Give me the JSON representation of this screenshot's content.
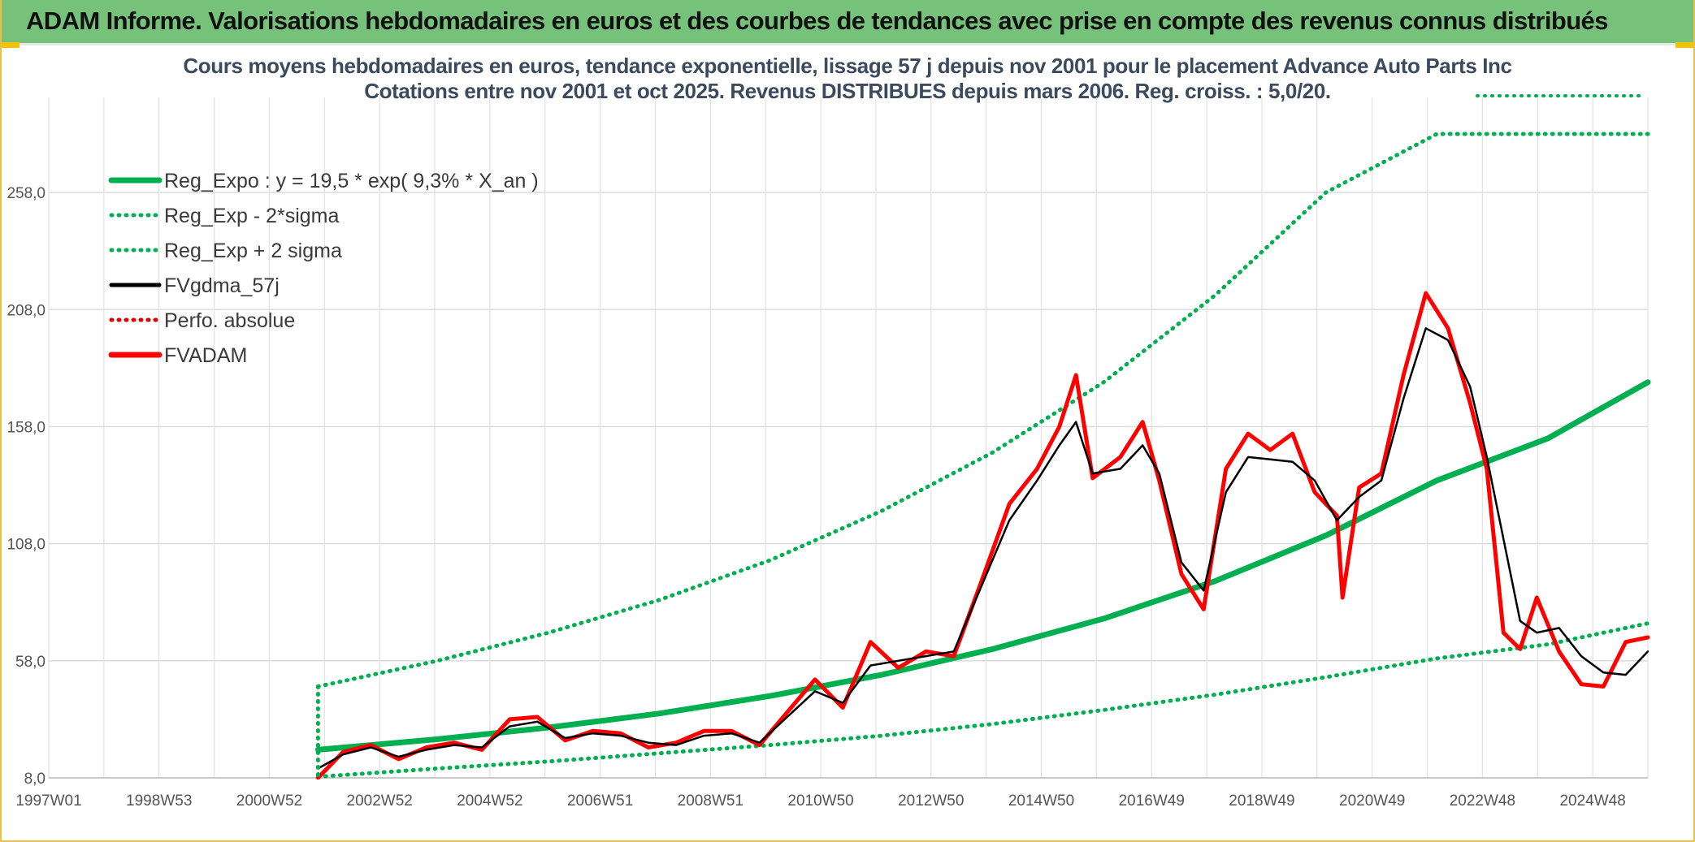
{
  "banner": {
    "title": "ADAM Informe. Valorisations hebdomadaires en euros et des courbes de tendances avec prise en compte des revenus connus distribués",
    "background": "#77c27b"
  },
  "chart_data": {
    "type": "line",
    "title": "Cours moyens hebdomadaires en euros, tendance exponentielle, lissage 57 j depuis nov 2001 pour le placement Advance Auto Parts Inc",
    "subtitle": "Cotations entre nov 2001 et oct 2025. Revenus DISTRIBUES depuis mars 2006. Reg. croiss. : 5,0/20.",
    "xlabel": "",
    "ylabel": "",
    "x_range": [
      1997.0,
      2025.8
    ],
    "ylim": [
      8.0,
      283.0
    ],
    "y_ticks": [
      "8,0",
      "58,0",
      "108,0",
      "158,0",
      "208,0",
      "258,0"
    ],
    "x_ticks": [
      "1997W01",
      "1998W53",
      "2000W52",
      "2002W52",
      "2004W52",
      "2006W51",
      "2008W51",
      "2010W50",
      "2012W50",
      "2014W50",
      "2016W49",
      "2018W49",
      "2020W49",
      "2022W48",
      "2024W48"
    ],
    "grid": true,
    "legend_position": "top-left",
    "legend": [
      {
        "label": "Reg_Expo : y = 19,5 * exp( 9,3% *  X_an )",
        "color": "#00b050",
        "style": "solid-thick"
      },
      {
        "label": "Reg_Exp - 2*sigma",
        "color": "#00b050",
        "style": "dotted"
      },
      {
        "label": "Reg_Exp + 2 sigma",
        "color": "#00b050",
        "style": "dotted"
      },
      {
        "label": "FVgdma_57j",
        "color": "#000000",
        "style": "solid"
      },
      {
        "label": "Perfo. absolue",
        "color": "#e00000",
        "style": "dotted"
      },
      {
        "label": "FVADAM",
        "color": "#ff0000",
        "style": "solid-thick"
      }
    ],
    "series": [
      {
        "name": "Reg_Expo : y = 19,5 * exp( 9,3% *  X_an )",
        "formula": "y = 19,5 * exp( 9,3% * X_an )",
        "x_start": 2001.85,
        "x_end": 2025.8,
        "x": [
          2001.85,
          2004.0,
          2006.0,
          2008.0,
          2010.0,
          2012.0,
          2014.0,
          2016.0,
          2018.0,
          2020.0,
          2022.0,
          2024.0,
          2025.8
        ],
        "values": [
          20.0,
          24.5,
          29.5,
          35.5,
          43.0,
          52.0,
          63.0,
          76.0,
          92.0,
          111.5,
          135.0,
          153.0,
          177.0
        ]
      },
      {
        "name": "Reg_Exp - 2*sigma",
        "x_start": 2001.85,
        "x_end": 2025.8,
        "x": [
          2001.85,
          2004.0,
          2006.0,
          2008.0,
          2010.0,
          2012.0,
          2014.0,
          2016.0,
          2018.0,
          2020.0,
          2022.0,
          2024.0,
          2025.8
        ],
        "values": [
          8.5,
          12.0,
          15.0,
          18.5,
          22.0,
          26.0,
          31.0,
          37.0,
          43.5,
          51.0,
          59.0,
          65.0,
          74.0
        ]
      },
      {
        "name": "Reg_Exp + 2 sigma",
        "x_start": 2001.85,
        "x_end": 2025.8,
        "x": [
          2001.85,
          2004.0,
          2006.0,
          2008.0,
          2010.0,
          2012.0,
          2014.0,
          2016.0,
          2018.0,
          2020.0,
          2022.0,
          2024.0,
          2025.8
        ],
        "values": [
          47.0,
          58.0,
          70.0,
          84.0,
          101.0,
          122.0,
          147.0,
          177.0,
          214.0,
          258.0,
          283.0,
          283.0,
          283.0
        ]
      },
      {
        "name": "FVgdma_57j",
        "x": [
          2001.85,
          2002.3,
          2002.8,
          2003.3,
          2003.8,
          2004.3,
          2004.8,
          2005.3,
          2005.8,
          2006.3,
          2006.8,
          2007.3,
          2007.8,
          2008.3,
          2008.8,
          2009.3,
          2009.8,
          2010.3,
          2010.8,
          2011.3,
          2011.8,
          2012.3,
          2012.8,
          2013.3,
          2013.8,
          2014.3,
          2014.8,
          2015.2,
          2015.5,
          2015.8,
          2016.3,
          2016.7,
          2017.0,
          2017.4,
          2017.8,
          2018.2,
          2018.6,
          2019.0,
          2019.4,
          2019.8,
          2020.2,
          2020.6,
          2021.0,
          2021.4,
          2021.8,
          2022.2,
          2022.6,
          2022.9,
          2023.2,
          2023.5,
          2023.8,
          2024.2,
          2024.6,
          2025.0,
          2025.4,
          2025.8
        ],
        "values": [
          12.0,
          18.0,
          21.0,
          17.0,
          20.0,
          22.0,
          21.0,
          30.0,
          32.0,
          25.0,
          27.0,
          26.0,
          23.0,
          22.0,
          26.0,
          27.0,
          23.0,
          34.0,
          45.0,
          40.0,
          56.0,
          58.0,
          60.0,
          62.0,
          90.0,
          118.0,
          135.0,
          150.0,
          160.0,
          138.0,
          140.0,
          150.0,
          138.0,
          100.0,
          88.0,
          130.0,
          145.0,
          144.0,
          143.0,
          135.0,
          118.0,
          128.0,
          135.0,
          170.0,
          200.0,
          195.0,
          175.0,
          145.0,
          110.0,
          75.0,
          70.0,
          72.0,
          60.0,
          53.0,
          52.0,
          62.0
        ]
      },
      {
        "name": "FVADAM",
        "x": [
          2001.85,
          2002.3,
          2002.8,
          2003.3,
          2003.8,
          2004.3,
          2004.8,
          2005.3,
          2005.8,
          2006.3,
          2006.8,
          2007.3,
          2007.8,
          2008.3,
          2008.8,
          2009.3,
          2009.8,
          2010.3,
          2010.8,
          2011.3,
          2011.8,
          2012.3,
          2012.8,
          2013.3,
          2013.8,
          2014.3,
          2014.8,
          2015.2,
          2015.5,
          2015.8,
          2016.3,
          2016.7,
          2017.0,
          2017.4,
          2017.8,
          2018.2,
          2018.6,
          2019.0,
          2019.4,
          2019.8,
          2020.2,
          2020.3,
          2020.6,
          2021.0,
          2021.4,
          2021.8,
          2022.2,
          2022.6,
          2022.9,
          2023.2,
          2023.5,
          2023.8,
          2024.2,
          2024.6,
          2025.0,
          2025.4,
          2025.8
        ],
        "values": [
          8.0,
          19.0,
          22.0,
          16.0,
          21.0,
          23.0,
          20.0,
          33.0,
          34.0,
          24.0,
          28.0,
          27.0,
          21.0,
          23.0,
          28.0,
          28.0,
          22.0,
          36.0,
          50.0,
          38.0,
          66.0,
          55.0,
          62.0,
          60.0,
          92.0,
          125.0,
          140.0,
          158.0,
          180.0,
          136.0,
          145.0,
          160.0,
          135.0,
          95.0,
          80.0,
          140.0,
          155.0,
          148.0,
          155.0,
          130.0,
          120.0,
          85.0,
          132.0,
          138.0,
          180.0,
          215.0,
          200.0,
          168.0,
          140.0,
          70.0,
          63.0,
          85.0,
          62.0,
          48.0,
          47.0,
          66.0,
          68.0
        ]
      }
    ]
  },
  "colors": {
    "reg_expo": "#00b050",
    "fvgdma": "#000000",
    "fvadam": "#ff0000",
    "perfo": "#e00000",
    "grid": "#dcdcdc",
    "corner_accent": "#f2c200"
  }
}
